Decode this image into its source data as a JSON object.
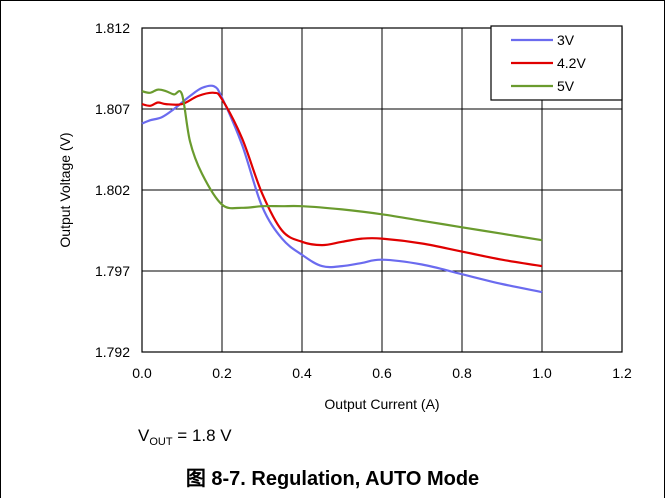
{
  "chart_data": {
    "type": "line",
    "xlabel": "Output Current (A)",
    "ylabel": "Output Voltage (V)",
    "xlim": [
      0,
      1.2
    ],
    "ylim": [
      1.792,
      1.812
    ],
    "xticks": [
      "0.0",
      "0.2",
      "0.4",
      "0.6",
      "0.8",
      "1.0",
      "1.2"
    ],
    "yticks": [
      "1.792",
      "1.797",
      "1.802",
      "1.807",
      "1.812"
    ],
    "grid": true,
    "legend_position": "top-right",
    "series": [
      {
        "name": "3V",
        "color": "#6b6bef",
        "x": [
          0.0,
          0.02,
          0.05,
          0.08,
          0.12,
          0.15,
          0.18,
          0.2,
          0.25,
          0.3,
          0.35,
          0.4,
          0.45,
          0.5,
          0.55,
          0.6,
          0.7,
          0.8,
          0.9,
          1.0
        ],
        "y": [
          1.8061,
          1.8063,
          1.8065,
          1.807,
          1.8078,
          1.8083,
          1.8084,
          1.8077,
          1.8048,
          1.801,
          1.799,
          1.798,
          1.7973,
          1.7973,
          1.7975,
          1.7977,
          1.7974,
          1.7968,
          1.7962,
          1.7957
        ]
      },
      {
        "name": "4.2V",
        "color": "#e00000",
        "x": [
          0.0,
          0.02,
          0.04,
          0.06,
          0.1,
          0.14,
          0.18,
          0.2,
          0.25,
          0.3,
          0.35,
          0.4,
          0.45,
          0.5,
          0.55,
          0.6,
          0.7,
          0.8,
          0.9,
          1.0
        ],
        "y": [
          1.8073,
          1.8072,
          1.8074,
          1.8073,
          1.8073,
          1.8078,
          1.808,
          1.8076,
          1.8052,
          1.8018,
          1.7995,
          1.7988,
          1.7986,
          1.7988,
          1.799,
          1.799,
          1.7987,
          1.7982,
          1.7977,
          1.7973
        ]
      },
      {
        "name": "5V",
        "color": "#6a9b2e",
        "x": [
          0.0,
          0.02,
          0.04,
          0.06,
          0.08,
          0.1,
          0.12,
          0.15,
          0.2,
          0.25,
          0.3,
          0.35,
          0.4,
          0.5,
          0.6,
          0.7,
          0.8,
          0.9,
          1.0
        ],
        "y": [
          1.8081,
          1.808,
          1.8082,
          1.8081,
          1.8079,
          1.8079,
          1.805,
          1.803,
          1.8011,
          1.8009,
          1.801,
          1.801,
          1.801,
          1.8008,
          1.8005,
          1.8001,
          1.7997,
          1.7993,
          1.7989
        ]
      }
    ]
  },
  "annotation": {
    "vout_symbol": "V",
    "vout_subscript": "OUT",
    "vout_value": " = 1.8 V"
  },
  "caption": "图 8-7. Regulation, AUTO Mode"
}
